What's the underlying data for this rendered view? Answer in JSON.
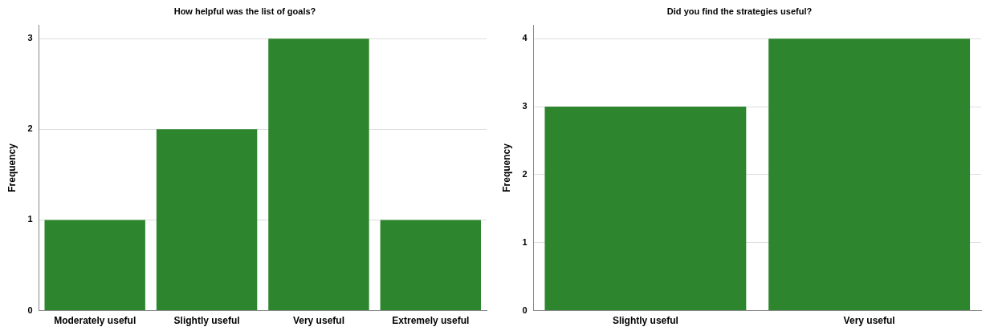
{
  "chart_data": [
    {
      "type": "bar",
      "title": "How helpful was the list of goals?",
      "ylabel": "Frequency",
      "categories": [
        "Moderately useful",
        "Slightly useful",
        "Very useful",
        "Extremely useful"
      ],
      "values": [
        1,
        2,
        3,
        1
      ],
      "color": "#2d862d",
      "ylim": [
        0,
        3.15
      ],
      "yticks": [
        0,
        1,
        2,
        3
      ],
      "grid": "y",
      "legend": false
    },
    {
      "type": "bar",
      "title": "Did you find the strategies useful?",
      "ylabel": "Frequency",
      "categories": [
        "Slightly useful",
        "Very useful"
      ],
      "values": [
        3,
        4
      ],
      "color": "#2d862d",
      "ylim": [
        0,
        4.2
      ],
      "yticks": [
        0,
        1,
        2,
        3,
        4
      ],
      "grid": "y",
      "legend": false
    }
  ]
}
